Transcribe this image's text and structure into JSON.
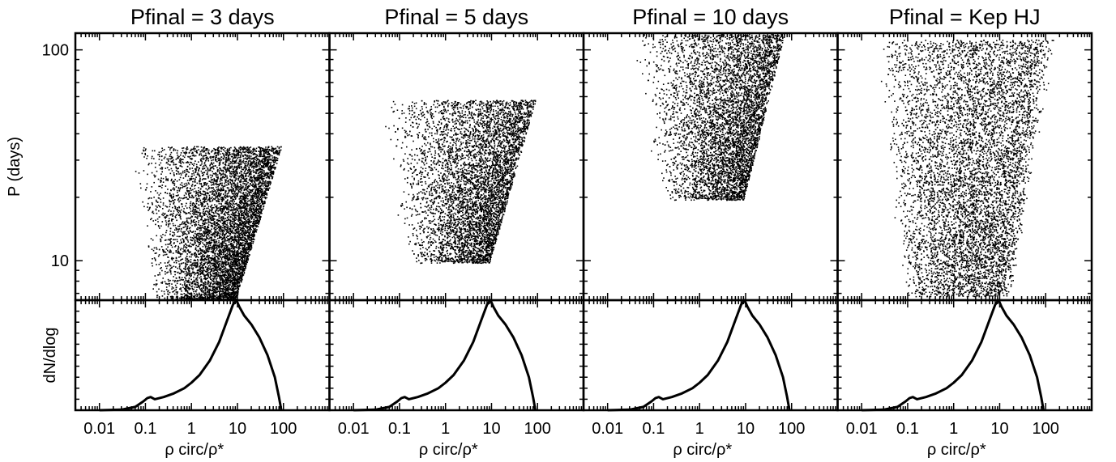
{
  "chart_data": {
    "type": "scatter",
    "ylabel_top": "P (days)",
    "ylabel_bottom": "dN/dlog",
    "xlabel": "ρ circ/ρ*",
    "x_scale": "log",
    "x_range": [
      0.003,
      1000
    ],
    "x_ticks": [
      0.01,
      0.1,
      1,
      10,
      100
    ],
    "x_tick_labels": [
      "0.01",
      "0.1",
      "1",
      "10",
      "100"
    ],
    "y_scale": "log",
    "y_range": [
      6.5,
      120
    ],
    "y_ticks": [
      10,
      100
    ],
    "y_tick_labels": [
      "10",
      "100"
    ],
    "panels": [
      {
        "title": "Pfinal = 3 days",
        "scatter": {
          "p_min": 6.5,
          "p_max": 35,
          "x_min_low": 0.13,
          "x_min_high": 0.045,
          "x_max_low": 9,
          "x_max_high": 90,
          "n": 6500,
          "shape": "wedge"
        }
      },
      {
        "title": "Pfinal = 5 days",
        "scatter": {
          "p_min": 9.8,
          "p_max": 58,
          "x_min_low": 0.13,
          "x_min_high": 0.035,
          "x_max_low": 9,
          "x_max_high": 90,
          "n": 5500,
          "shape": "wedge"
        }
      },
      {
        "title": "Pfinal = 10 days",
        "scatter": {
          "p_min": 19.5,
          "p_max": 120,
          "x_min_low": 0.13,
          "x_min_high": 0.03,
          "x_max_low": 9,
          "x_max_high": 70,
          "n": 5500,
          "shape": "wedge"
        }
      },
      {
        "title": "Pfinal = Kep HJ",
        "scatter": {
          "p_min": 6.8,
          "p_max": 112,
          "x_min_low": 0.1,
          "x_min_high": 0.03,
          "x_max_low": 12,
          "x_max_high": 110,
          "n": 6500,
          "shape": "diffuse"
        }
      }
    ],
    "distribution": {
      "x": [
        0.01,
        0.03,
        0.06,
        0.09,
        0.11,
        0.13,
        0.16,
        0.25,
        0.4,
        0.7,
        1,
        1.5,
        2.5,
        4,
        6,
        8,
        9.5,
        11,
        14,
        20,
        30,
        45,
        65,
        80,
        90
      ],
      "y": [
        0.0,
        0.005,
        0.03,
        0.08,
        0.11,
        0.12,
        0.1,
        0.12,
        0.15,
        0.2,
        0.25,
        0.32,
        0.45,
        0.62,
        0.82,
        0.96,
        1.0,
        0.94,
        0.86,
        0.78,
        0.66,
        0.5,
        0.3,
        0.12,
        0.0
      ],
      "ylim": [
        0,
        1.0
      ]
    }
  }
}
